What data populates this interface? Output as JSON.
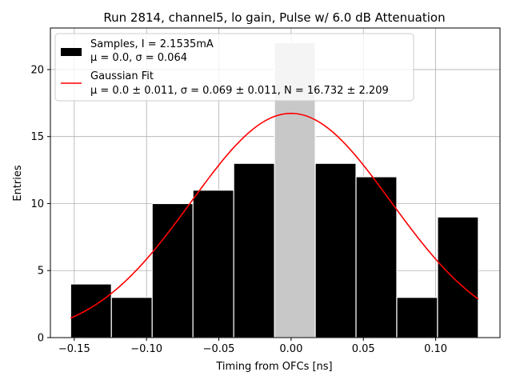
{
  "chart_data": {
    "type": "bar",
    "title": "Run 2814, channel5, lo gain, Pulse w/ 6.0 dB Attenuation",
    "xlabel": "Timing from OFCs [ns]",
    "ylabel": "Entries",
    "xlim": [
      -0.1665,
      0.1445
    ],
    "ylim": [
      0,
      23.1
    ],
    "grid": true,
    "x_ticks": [
      -0.15,
      -0.1,
      -0.05,
      0.0,
      0.05,
      0.1
    ],
    "x_tick_labels": [
      "−0.15",
      "−0.10",
      "−0.05",
      "0.00",
      "0.05",
      "0.10"
    ],
    "y_ticks": [
      0,
      5,
      10,
      15,
      20
    ],
    "y_tick_labels": [
      "0",
      "5",
      "10",
      "15",
      "20"
    ],
    "histogram": {
      "name": "Samples, I = 2.1535mA",
      "bin_edges": [
        -0.1525,
        -0.1243,
        -0.0961,
        -0.0679,
        -0.0397,
        -0.0115,
        0.0167,
        0.0449,
        0.0731,
        0.1013,
        0.1295
      ],
      "counts": [
        4,
        3,
        10,
        11,
        13,
        22,
        13,
        12,
        3,
        9
      ],
      "color": "#000000",
      "highlight_color": "#c8c8c8"
    },
    "fit": {
      "name": "Gaussian Fit",
      "type": "line",
      "mu": 0.0,
      "sigma": 0.069,
      "N": 16.732,
      "x_range": [
        -0.1525,
        0.1295
      ],
      "color": "#ff0000"
    },
    "legend": {
      "position": "top-left",
      "entries": [
        {
          "label": "Samples, I = 2.1535mA",
          "sublabel": "μ = 0.0, σ = 0.064"
        },
        {
          "label": "Gaussian Fit",
          "sublabel": "μ = 0.0 ± 0.011, σ = 0.069 ± 0.011, N = 16.732 ± 2.209"
        }
      ]
    }
  }
}
